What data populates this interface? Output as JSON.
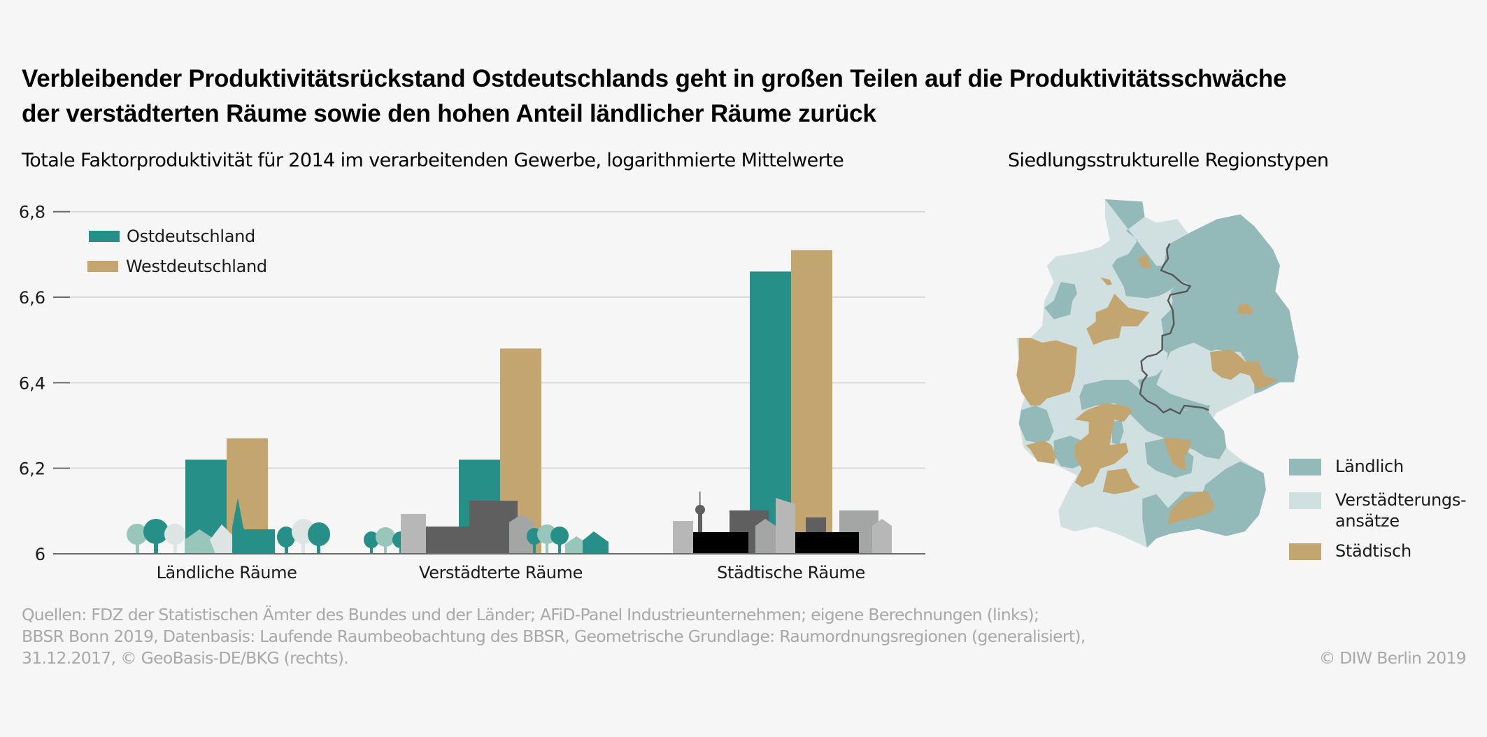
{
  "title": {
    "line1": "Verbleibender Produktivitätsrückstand Ostdeutschlands geht in großen Teilen auf die Produktivitätsschwäche",
    "line2": "der verstädterten Räume sowie den hohen Anteil ländlicher Räume zurück"
  },
  "colors": {
    "ost": "#268f87",
    "west": "#c3a570",
    "laendlich": "#93b9b9",
    "verstaedterung": "#d0dfdf",
    "staedtisch": "#c3a570",
    "background": "#f6f6f6",
    "border_line": "#555555"
  },
  "chart_data": {
    "type": "bar",
    "title": "Totale Faktorproduktivität für 2014 im verarbeitenden Gewerbe, logarithmierte Mittelwerte",
    "xlabel": "",
    "ylabel": "",
    "categories": [
      "Ländliche Räume",
      "Verstädterte Räume",
      "Städtische Räume"
    ],
    "series": [
      {
        "name": "Ostdeutschland",
        "values": [
          6.22,
          6.22,
          6.66
        ]
      },
      {
        "name": "Westdeutschland",
        "values": [
          6.27,
          6.48,
          6.71
        ]
      }
    ],
    "ylim": [
      6.0,
      6.8
    ],
    "yticks": [
      6.0,
      6.2,
      6.4,
      6.6,
      6.8
    ],
    "ytick_labels": [
      "6",
      "6,2",
      "6,4",
      "6,6",
      "6,8"
    ],
    "grid": true,
    "legend_position": "top-left"
  },
  "map": {
    "title": "Siedlungsstrukturelle Regionstypen",
    "legend": [
      {
        "label": "Ländlich",
        "color": "#93b9b9"
      },
      {
        "label_line1": "Verstädterungs-",
        "label_line2": "ansätze",
        "color": "#d0dfdf"
      },
      {
        "label": "Städtisch",
        "color": "#c3a570"
      }
    ]
  },
  "footer": {
    "source_line1": "Quellen: FDZ der Statistischen Ämter des Bundes und der Länder; AFiD-Panel Industrieunternehmen; eigene Berechnungen (links);",
    "source_line2": "BBSR Bonn 2019, Datenbasis: Laufende Raumbeobachtung des BBSR, Geometrische Grundlage: Raumordnungsregionen (generalisiert),",
    "source_line3": "31.12.2017, © GeoBasis-DE/BKG (rechts).",
    "copyright": "© DIW Berlin 2019"
  }
}
